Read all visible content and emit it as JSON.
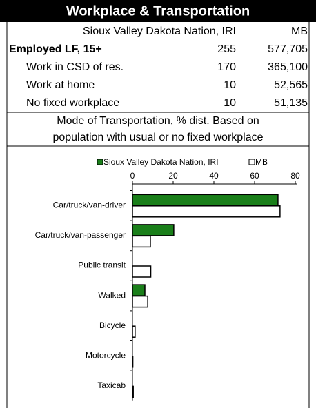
{
  "header": {
    "title": "Workplace & Transportation"
  },
  "table": {
    "columns": [
      "Sioux Valley Dakota Nation, IRI",
      "MB"
    ],
    "rows": [
      [
        "Employed LF, 15+",
        "255",
        "577,705"
      ],
      [
        "Work in CSD of res.",
        "170",
        "365,100"
      ],
      [
        "Work at home",
        "10",
        "52,565"
      ],
      [
        "No fixed workplace",
        "10",
        "51,135"
      ]
    ]
  },
  "section": {
    "lines": [
      "Mode of Transportation, % dist. Based on",
      "population with usual or no fixed workplace"
    ]
  },
  "chart_data": {
    "type": "hbar",
    "categories": [
      "Car/truck/van-driver",
      "Car/truck/van-passenger",
      "Public transit",
      "Walked",
      "Bicycle",
      "Motorcycle",
      "Taxicab"
    ],
    "series": [
      {
        "name": "Sioux Valley Dakota Nation, IRI",
        "color": "#1a7f1a",
        "values": [
          71.5,
          20.3,
          0,
          6.1,
          0,
          0,
          0
        ]
      },
      {
        "name": "MB",
        "color": "#ffffff",
        "values": [
          72.5,
          8.8,
          9.0,
          7.5,
          1.3,
          0.2,
          0.4
        ]
      }
    ],
    "xlim": [
      0,
      80
    ],
    "xticks": [
      0,
      20,
      40,
      60,
      80
    ],
    "legend": "top"
  }
}
